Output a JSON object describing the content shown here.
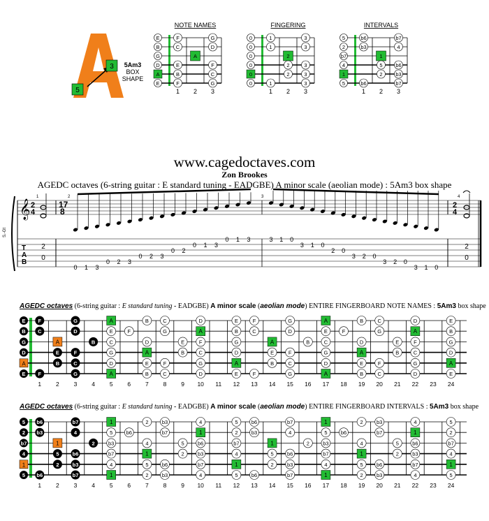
{
  "logo": {
    "letter": "A",
    "shape_label": "5Am3",
    "box": "BOX",
    "shape": "SHAPE",
    "marker_top": "3",
    "marker_bottom": "5"
  },
  "small_diagrams": [
    {
      "title": "NOTE NAMES",
      "open": [
        "E",
        "B",
        "G",
        "D",
        "A",
        "E"
      ],
      "cells": [
        [
          "F",
          "",
          "G"
        ],
        [
          "C",
          "",
          "D"
        ],
        [
          "",
          "A",
          ""
        ],
        [
          "E",
          "",
          "F"
        ],
        [
          "B",
          "",
          "C"
        ],
        [
          "F",
          "",
          "G"
        ]
      ],
      "highlight_open": 4,
      "highlight_cell": [
        2,
        1
      ]
    },
    {
      "title": "FINGERING",
      "open": [
        "0",
        "0",
        "0",
        "0",
        "0",
        "0"
      ],
      "cells": [
        [
          "1",
          "",
          "3"
        ],
        [
          "1",
          "",
          "3"
        ],
        [
          "",
          "2",
          ""
        ],
        [
          "",
          "2",
          "3"
        ],
        [
          "",
          "2",
          "3"
        ],
        [
          "1",
          "",
          "3"
        ]
      ],
      "highlight_open": 4,
      "highlight_cell": [
        2,
        1
      ]
    },
    {
      "title": "INTERVALS",
      "open": [
        "5",
        "2",
        "b7",
        "4",
        "1",
        "5"
      ],
      "cells": [
        [
          "b6",
          "",
          "b7"
        ],
        [
          "b3",
          "",
          "4"
        ],
        [
          "",
          "1",
          ""
        ],
        [
          "",
          "5",
          "b6"
        ],
        [
          "",
          "2",
          "b3"
        ],
        [
          "b6",
          "",
          "b7"
        ]
      ],
      "highlight_open": 4,
      "highlight_cell": [
        2,
        1
      ]
    }
  ],
  "fret_numbers_small": [
    "1",
    "2",
    "3"
  ],
  "site": "www.cagedoctaves.com",
  "composer": "Zon Brookes",
  "subtitle": "AGEDC octaves (6-string guitar : E standard tuning - EADGBE) A minor scale (aeolian mode) : 5Am3 box shape",
  "score": {
    "time1_top": "2",
    "time1_bottom": "4",
    "time2_top": "17",
    "time2_bottom": "8",
    "time3_top": "2",
    "time3_bottom": "4",
    "tab_label": [
      "T",
      "A",
      "B"
    ],
    "measure_numbers": [
      "1",
      "2",
      "3",
      "4"
    ],
    "instrument": "S.-Gt",
    "tab_start": [
      "2",
      "0"
    ],
    "tab_end": [
      "2",
      "0"
    ],
    "tab_notes_asc": [
      "0",
      "1",
      "3",
      "0",
      "2",
      "3",
      "0",
      "2",
      "3",
      "0",
      "2",
      "0",
      "1",
      "3",
      "0",
      "1",
      "3"
    ],
    "tab_notes_desc": [
      "3",
      "1",
      "0",
      "3",
      "1",
      "0",
      "2",
      "0",
      "3",
      "2",
      "0",
      "3",
      "2",
      "0",
      "3",
      "1",
      "0"
    ]
  },
  "fb_header_1": {
    "a": "AGEDC octaves",
    "b": " (6-string guitar : ",
    "c": "E standard tuning",
    "d": " - EADGBE) ",
    "e": "A minor scale",
    "f": " (",
    "g": "aeolian mode",
    "h": ") ENTIRE FINGERBOARD  NOTE NAMES : ",
    "i": "5Am3",
    "j": " box shape"
  },
  "fb_header_2": {
    "a": "AGEDC octaves",
    "b": " (6-string guitar : ",
    "c": "E standard tuning",
    "d": " - EADGBE) ",
    "e": "A minor scale",
    "f": " (",
    "g": "aeolian mode",
    "h": ") ENTIRE FINGERBOARD  INTERVALS : ",
    "i": "5Am3",
    "j": " box shape"
  },
  "fret_numbers": [
    "1",
    "2",
    "3",
    "4",
    "5",
    "6",
    "7",
    "8",
    "9",
    "10",
    "11",
    "12",
    "13",
    "14",
    "15",
    "16",
    "17",
    "18",
    "19",
    "20",
    "21",
    "22",
    "23",
    "24"
  ],
  "fb_notes": {
    "open": [
      "E",
      "B",
      "G",
      "D",
      "A",
      "E"
    ],
    "rows": [
      [
        "F",
        "",
        "G",
        "",
        "A",
        "",
        "B",
        "C",
        "",
        "D",
        "",
        "E",
        "F",
        "",
        "G",
        "",
        "A",
        "",
        "B",
        "C",
        "",
        "D",
        "",
        "E"
      ],
      [
        "C",
        "",
        "D",
        "",
        "E",
        "F",
        "",
        "G",
        "",
        "A",
        "",
        "B",
        "C",
        "",
        "D",
        "",
        "E",
        "F",
        "",
        "G",
        "",
        "A",
        "",
        "B"
      ],
      [
        "",
        "A",
        "",
        "B",
        "C",
        "",
        "D",
        "",
        "E",
        "F",
        "",
        "G",
        "",
        "A",
        "",
        "B",
        "C",
        "",
        "D",
        "",
        "E",
        "F",
        "",
        "G"
      ],
      [
        "",
        "E",
        "F",
        "",
        "G",
        "",
        "A",
        "",
        "B",
        "C",
        "",
        "D",
        "",
        "E",
        "F",
        "",
        "G",
        "",
        "A",
        "",
        "B",
        "C",
        "",
        "D"
      ],
      [
        "",
        "B",
        "C",
        "",
        "D",
        "",
        "E",
        "F",
        "",
        "G",
        "",
        "A",
        "",
        "B",
        "C",
        "",
        "D",
        "",
        "E",
        "F",
        "",
        "G",
        "",
        "A"
      ],
      [
        "F",
        "",
        "G",
        "",
        "A",
        "",
        "B",
        "C",
        "",
        "D",
        "",
        "E",
        "F",
        "",
        "G",
        "",
        "A",
        "",
        "B",
        "C",
        "",
        "D",
        "",
        "E"
      ]
    ]
  },
  "fb_intervals": {
    "open": [
      "5",
      "2",
      "b7",
      "4",
      "1",
      "5"
    ],
    "rows": [
      [
        "b6",
        "",
        "b7",
        "",
        "1",
        "",
        "2",
        "b3",
        "",
        "4",
        "",
        "5",
        "b6",
        "",
        "b7",
        "",
        "1",
        "",
        "2",
        "b3",
        "",
        "4",
        "",
        "5"
      ],
      [
        "b3",
        "",
        "4",
        "",
        "5",
        "b6",
        "",
        "b7",
        "",
        "1",
        "",
        "2",
        "b3",
        "",
        "4",
        "",
        "5",
        "b6",
        "",
        "b7",
        "",
        "1",
        "",
        "2"
      ],
      [
        "",
        "1",
        "",
        "2",
        "b3",
        "",
        "4",
        "",
        "5",
        "b6",
        "",
        "b7",
        "",
        "1",
        "",
        "2",
        "b3",
        "",
        "4",
        "",
        "5",
        "b6",
        "",
        "b7"
      ],
      [
        "",
        "5",
        "b6",
        "",
        "b7",
        "",
        "1",
        "",
        "2",
        "b3",
        "",
        "4",
        "",
        "5",
        "b6",
        "",
        "b7",
        "",
        "1",
        "",
        "2",
        "b3",
        "",
        "4"
      ],
      [
        "",
        "2",
        "b3",
        "",
        "4",
        "",
        "5",
        "b6",
        "",
        "b7",
        "",
        "1",
        "",
        "2",
        "b3",
        "",
        "4",
        "",
        "5",
        "b6",
        "",
        "b7",
        "",
        "1"
      ],
      [
        "b6",
        "",
        "b7",
        "",
        "1",
        "",
        "2",
        "b3",
        "",
        "4",
        "",
        "5",
        "b6",
        "",
        "b7",
        "",
        "1",
        "",
        "2",
        "b3",
        "",
        "4",
        "",
        "5"
      ]
    ]
  },
  "colors": {
    "green": "#22bb33",
    "orange": "#f07f1a",
    "black": "#000000"
  }
}
